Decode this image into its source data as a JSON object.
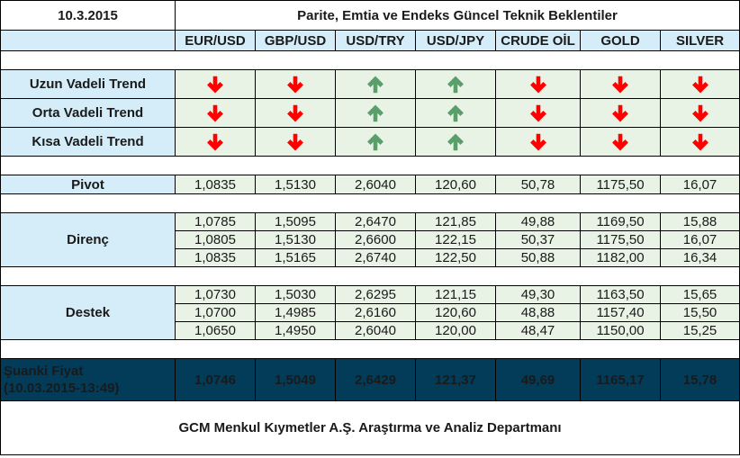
{
  "header": {
    "date": "10.3.2015",
    "title": "Parite, Emtia ve Endeks Güncel Teknik Beklentiler"
  },
  "columns": [
    "EUR/USD",
    "GBP/USD",
    "USD/TRY",
    "USD/JPY",
    "CRUDE OİL",
    "GOLD",
    "SILVER"
  ],
  "colors": {
    "header_bg": "#d5edf8",
    "cell_bg": "#e8f3e6",
    "current_bg": "#023c59",
    "down_arrow": "#ff0000",
    "up_arrow": "#5a9e6a"
  },
  "trends": [
    {
      "label": "Uzun Vadeli Trend",
      "directions": [
        "down",
        "down",
        "up",
        "up",
        "down",
        "down",
        "down"
      ]
    },
    {
      "label": "Orta Vadeli Trend",
      "directions": [
        "down",
        "down",
        "up",
        "up",
        "down",
        "down",
        "down"
      ]
    },
    {
      "label": "Kısa Vadeli Trend",
      "directions": [
        "down",
        "down",
        "up",
        "up",
        "down",
        "down",
        "down"
      ]
    }
  ],
  "pivot": {
    "label": "Pivot",
    "values": [
      "1,0835",
      "1,5130",
      "2,6040",
      "120,60",
      "50,78",
      "1175,50",
      "16,07"
    ]
  },
  "resistance": {
    "label": "Direnç",
    "rows": [
      [
        "1,0785",
        "1,5095",
        "2,6470",
        "121,85",
        "49,88",
        "1169,50",
        "15,88"
      ],
      [
        "1,0805",
        "1,5130",
        "2,6600",
        "122,15",
        "50,37",
        "1175,50",
        "16,07"
      ],
      [
        "1,0835",
        "1,5165",
        "2,6740",
        "122,50",
        "50,88",
        "1182,00",
        "16,34"
      ]
    ]
  },
  "support": {
    "label": "Destek",
    "rows": [
      [
        "1,0730",
        "1,5030",
        "2,6295",
        "121,15",
        "49,30",
        "1163,50",
        "15,65"
      ],
      [
        "1,0700",
        "1,4985",
        "2,6160",
        "120,60",
        "48,88",
        "1157,40",
        "15,50"
      ],
      [
        "1,0650",
        "1,4950",
        "2,6040",
        "120,00",
        "48,47",
        "1150,00",
        "15,25"
      ]
    ]
  },
  "current": {
    "label_line1": "Şuanki Fiyat",
    "label_line2": "(10.03.2015-13:49)",
    "values": [
      "1,0746",
      "1,5049",
      "2,6429",
      "121,37",
      "49,69",
      "1165,17",
      "15,78"
    ]
  },
  "footer": {
    "text": "GCM Menkul Kıymetler A.Ş. Araştırma ve Analiz Departmanı"
  }
}
